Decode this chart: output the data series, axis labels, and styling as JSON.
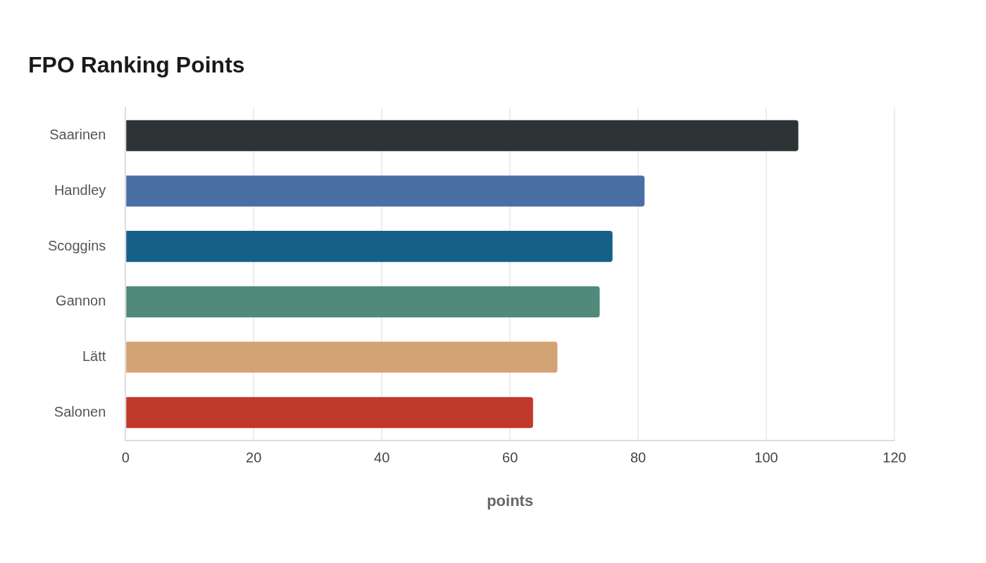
{
  "chart_data": {
    "type": "bar",
    "orientation": "horizontal",
    "title": "FPO Ranking Points",
    "xlabel": "points",
    "categories": [
      "Saarinen",
      "Handley",
      "Scoggins",
      "Gannon",
      "Lätt",
      "Salonen"
    ],
    "values": [
      105,
      81,
      76,
      74,
      67.4,
      63.6
    ],
    "colors": [
      "#2d3436",
      "#4a6fa5",
      "#166088",
      "#4f8a7a",
      "#d4a373",
      "#c0392b"
    ],
    "xlim": [
      0,
      120
    ],
    "xticks": [
      0,
      20,
      40,
      60,
      80,
      100,
      120
    ],
    "grid": "x",
    "legend": false
  }
}
